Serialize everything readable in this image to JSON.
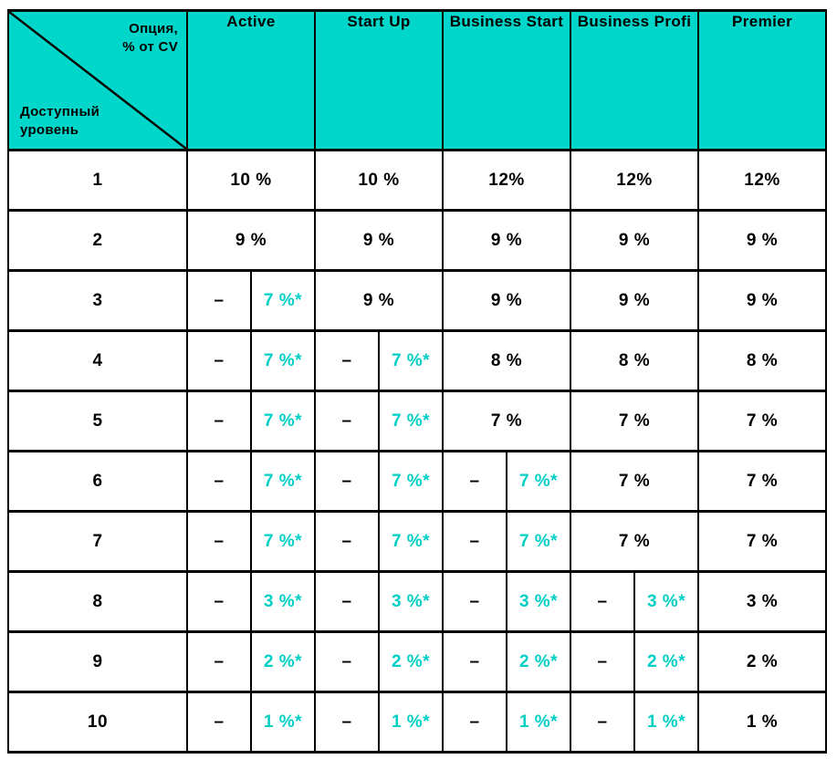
{
  "colors": {
    "header_bg": "#00d6ca",
    "accent_text": "#00cfc5",
    "border": "#000000",
    "page_bg": "#ffffff",
    "text": "#000000"
  },
  "chart_data": {
    "type": "table",
    "title": "",
    "corner": {
      "top": "Опция,\n% от CV",
      "bottom": "Доступный\nуровень"
    },
    "columns": [
      "Active",
      "Start Up",
      "Business Start",
      "Business Profi",
      "Premier"
    ],
    "dash": "–",
    "rows": [
      {
        "level": "1",
        "cells": [
          {
            "t": "full",
            "v": "10 %"
          },
          {
            "t": "full",
            "v": "10 %"
          },
          {
            "t": "full",
            "v": "12%"
          },
          {
            "t": "full",
            "v": "12%"
          },
          {
            "t": "full",
            "v": "12%"
          }
        ]
      },
      {
        "level": "2",
        "cells": [
          {
            "t": "full",
            "v": "9 %"
          },
          {
            "t": "full",
            "v": "9 %"
          },
          {
            "t": "full",
            "v": "9 %"
          },
          {
            "t": "full",
            "v": "9 %"
          },
          {
            "t": "full",
            "v": "9 %"
          }
        ]
      },
      {
        "level": "3",
        "cells": [
          {
            "t": "split",
            "l": "–",
            "r": "7 %*"
          },
          {
            "t": "full",
            "v": "9 %"
          },
          {
            "t": "full",
            "v": "9 %"
          },
          {
            "t": "full",
            "v": "9 %"
          },
          {
            "t": "full",
            "v": "9 %"
          }
        ]
      },
      {
        "level": "4",
        "cells": [
          {
            "t": "split",
            "l": "–",
            "r": "7 %*"
          },
          {
            "t": "split",
            "l": "–",
            "r": "7 %*"
          },
          {
            "t": "full",
            "v": "8 %"
          },
          {
            "t": "full",
            "v": "8 %"
          },
          {
            "t": "full",
            "v": "8 %"
          }
        ]
      },
      {
        "level": "5",
        "cells": [
          {
            "t": "split",
            "l": "–",
            "r": "7 %*"
          },
          {
            "t": "split",
            "l": "–",
            "r": "7 %*"
          },
          {
            "t": "full",
            "v": "7 %"
          },
          {
            "t": "full",
            "v": "7 %"
          },
          {
            "t": "full",
            "v": "7 %"
          }
        ]
      },
      {
        "level": "6",
        "cells": [
          {
            "t": "split",
            "l": "–",
            "r": "7 %*"
          },
          {
            "t": "split",
            "l": "–",
            "r": "7 %*"
          },
          {
            "t": "split",
            "l": "–",
            "r": "7 %*"
          },
          {
            "t": "full",
            "v": "7 %"
          },
          {
            "t": "full",
            "v": "7 %"
          }
        ]
      },
      {
        "level": "7",
        "cells": [
          {
            "t": "split",
            "l": "–",
            "r": "7 %*"
          },
          {
            "t": "split",
            "l": "–",
            "r": "7 %*"
          },
          {
            "t": "split",
            "l": "–",
            "r": "7 %*"
          },
          {
            "t": "full",
            "v": "7 %"
          },
          {
            "t": "full",
            "v": "7 %"
          }
        ]
      },
      {
        "level": "8",
        "cells": [
          {
            "t": "split",
            "l": "–",
            "r": "3 %*"
          },
          {
            "t": "split",
            "l": "–",
            "r": "3 %*"
          },
          {
            "t": "split",
            "l": "–",
            "r": "3 %*"
          },
          {
            "t": "split",
            "l": "–",
            "r": "3 %*"
          },
          {
            "t": "full",
            "v": "3 %"
          }
        ]
      },
      {
        "level": "9",
        "cells": [
          {
            "t": "split",
            "l": "–",
            "r": "2 %*"
          },
          {
            "t": "split",
            "l": "–",
            "r": "2 %*"
          },
          {
            "t": "split",
            "l": "–",
            "r": "2 %*"
          },
          {
            "t": "split",
            "l": "–",
            "r": "2 %*"
          },
          {
            "t": "full",
            "v": "2 %"
          }
        ]
      },
      {
        "level": "10",
        "cells": [
          {
            "t": "split",
            "l": "–",
            "r": "1 %*"
          },
          {
            "t": "split",
            "l": "–",
            "r": "1 %*"
          },
          {
            "t": "split",
            "l": "–",
            "r": "1 %*"
          },
          {
            "t": "split",
            "l": "–",
            "r": "1 %*"
          },
          {
            "t": "full",
            "v": "1 %"
          }
        ]
      }
    ]
  }
}
